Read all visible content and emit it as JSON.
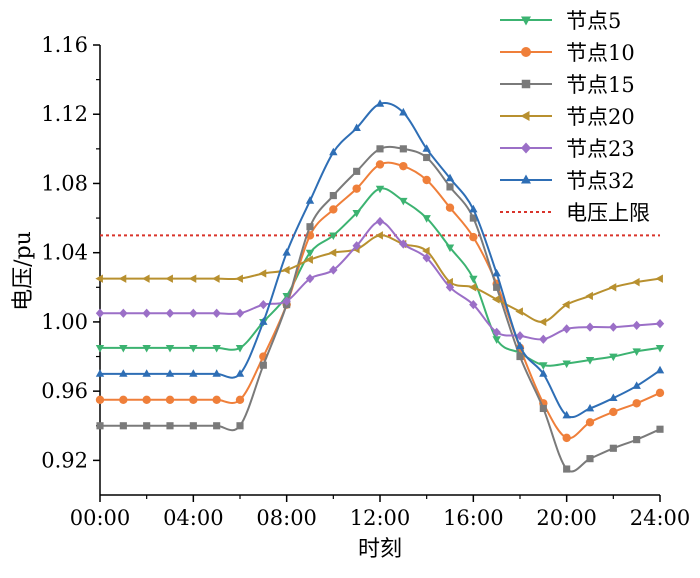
{
  "chart_data": {
    "type": "line",
    "title": "",
    "xlabel": "时刻",
    "ylabel": "电压/pu",
    "xlim": [
      0,
      24
    ],
    "ylim": [
      0.9,
      1.16
    ],
    "x_tick_labels": [
      "00:00",
      "04:00",
      "08:00",
      "12:00",
      "16:00",
      "20:00",
      "24:00"
    ],
    "x_tick_values": [
      0,
      4,
      8,
      12,
      16,
      20,
      24
    ],
    "y_ticks": [
      0.92,
      0.96,
      1.0,
      1.04,
      1.08,
      1.12,
      1.16
    ],
    "y_tick_labels": [
      "0.92",
      "0.96",
      "1.00",
      "1.04",
      "1.08",
      "1.12",
      "1.16"
    ],
    "x": [
      0,
      1,
      2,
      3,
      4,
      5,
      6,
      7,
      8,
      9,
      10,
      11,
      12,
      13,
      14,
      15,
      16,
      17,
      18,
      19,
      20,
      21,
      22,
      23,
      24
    ],
    "legend_position": "top-right",
    "series": [
      {
        "name": "节点5",
        "color": "#3cb371",
        "marker": "triangle-down",
        "values": [
          0.985,
          0.985,
          0.985,
          0.985,
          0.985,
          0.985,
          0.985,
          1.0,
          1.015,
          1.04,
          1.05,
          1.063,
          1.077,
          1.07,
          1.06,
          1.043,
          1.025,
          0.99,
          0.982,
          0.975,
          0.976,
          0.978,
          0.98,
          0.983,
          0.985
        ]
      },
      {
        "name": "节点10",
        "color": "#ef7f3a",
        "marker": "circle",
        "values": [
          0.955,
          0.955,
          0.955,
          0.955,
          0.955,
          0.955,
          0.955,
          0.98,
          1.01,
          1.05,
          1.065,
          1.077,
          1.091,
          1.09,
          1.082,
          1.066,
          1.049,
          1.022,
          0.985,
          0.953,
          0.933,
          0.942,
          0.948,
          0.953,
          0.959
        ]
      },
      {
        "name": "节点15",
        "color": "#7a7a7a",
        "marker": "square",
        "values": [
          0.94,
          0.94,
          0.94,
          0.94,
          0.94,
          0.94,
          0.94,
          0.975,
          1.01,
          1.055,
          1.073,
          1.087,
          1.1,
          1.1,
          1.095,
          1.078,
          1.06,
          1.02,
          0.98,
          0.95,
          0.915,
          0.921,
          0.927,
          0.932,
          0.938
        ]
      },
      {
        "name": "节点20",
        "color": "#b8902f",
        "marker": "triangle-left",
        "values": [
          1.025,
          1.025,
          1.025,
          1.025,
          1.025,
          1.025,
          1.025,
          1.028,
          1.03,
          1.036,
          1.04,
          1.042,
          1.05,
          1.045,
          1.041,
          1.023,
          1.02,
          1.013,
          1.006,
          1.0,
          1.01,
          1.015,
          1.02,
          1.023,
          1.025
        ]
      },
      {
        "name": "节点23",
        "color": "#9b6fc7",
        "marker": "diamond",
        "values": [
          1.005,
          1.005,
          1.005,
          1.005,
          1.005,
          1.005,
          1.005,
          1.01,
          1.012,
          1.025,
          1.03,
          1.044,
          1.058,
          1.045,
          1.037,
          1.02,
          1.01,
          0.994,
          0.992,
          0.99,
          0.996,
          0.997,
          0.997,
          0.998,
          0.999
        ]
      },
      {
        "name": "节点32",
        "color": "#2e6eb5",
        "marker": "triangle-up",
        "values": [
          0.97,
          0.97,
          0.97,
          0.97,
          0.97,
          0.97,
          0.97,
          1.0,
          1.04,
          1.07,
          1.098,
          1.112,
          1.126,
          1.121,
          1.1,
          1.083,
          1.065,
          1.028,
          0.986,
          0.97,
          0.946,
          0.95,
          0.956,
          0.963,
          0.972
        ]
      }
    ],
    "reference_line": {
      "name": "电压上限",
      "value": 1.05,
      "color": "#d9342b",
      "style": "dotted"
    }
  }
}
